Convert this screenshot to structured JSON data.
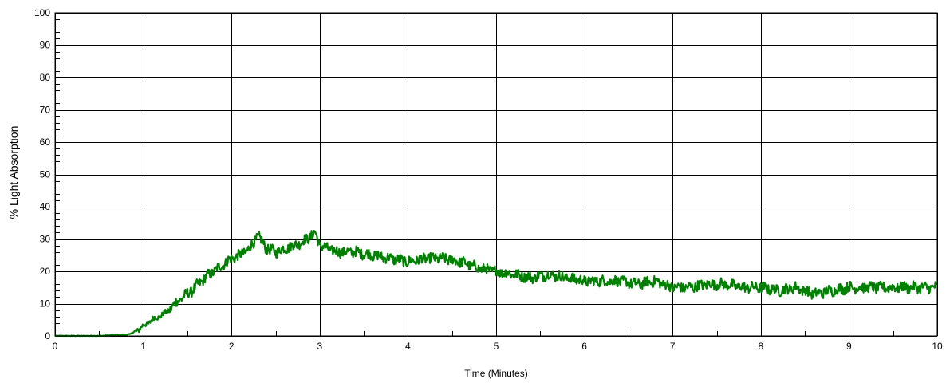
{
  "chart_data": {
    "type": "line",
    "title": "",
    "xlabel": "Time (Minutes)",
    "ylabel": "% Light Absorption",
    "xlim": [
      0,
      10
    ],
    "ylim": [
      0,
      100
    ],
    "xticks": [
      0,
      1,
      2,
      3,
      4,
      5,
      6,
      7,
      8,
      9,
      10
    ],
    "yticks": [
      0,
      10,
      20,
      30,
      40,
      50,
      60,
      70,
      80,
      90,
      100
    ],
    "x_minor_step": 0.5,
    "y_minor_step": 2,
    "grid": true,
    "legend": "none",
    "series": [
      {
        "name": "",
        "color": "#008000",
        "x": [
          0,
          0.5,
          0.85,
          1.0,
          1.1,
          1.25,
          1.4,
          1.55,
          1.7,
          1.8,
          1.9,
          2.0,
          2.1,
          2.2,
          2.3,
          2.35,
          2.4,
          2.5,
          2.6,
          2.7,
          2.8,
          2.9,
          2.95,
          3.0,
          3.2,
          3.4,
          3.6,
          3.8,
          4.0,
          4.2,
          4.4,
          4.6,
          4.8,
          5.0,
          5.2,
          5.4,
          5.6,
          5.8,
          6.0,
          6.2,
          6.4,
          6.6,
          6.8,
          7.0,
          7.2,
          7.4,
          7.6,
          7.8,
          8.0,
          8.2,
          8.4,
          8.6,
          8.8,
          9.0,
          9.2,
          9.4,
          9.6,
          9.8,
          10.0
        ],
        "y": [
          0,
          0,
          0.5,
          3,
          5,
          7,
          11,
          14,
          18,
          20,
          22,
          24,
          25,
          27,
          31,
          29,
          27,
          26,
          27,
          28,
          29,
          31,
          32,
          28,
          26,
          26,
          25,
          24,
          23,
          24,
          24,
          23,
          21,
          20,
          19,
          18,
          19,
          18,
          17,
          17,
          17,
          16,
          17,
          15,
          15,
          16,
          16,
          15,
          15,
          14,
          15,
          13,
          14,
          15,
          15,
          15,
          15,
          15,
          15
        ]
      }
    ]
  }
}
